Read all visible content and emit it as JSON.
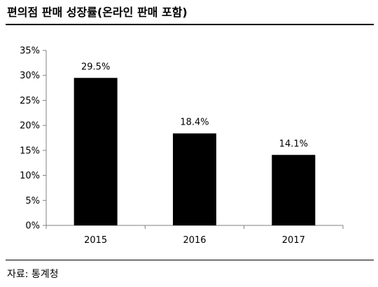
{
  "title": "편의점 판매 성장률(온라인 판매 포함)",
  "source": "자료: 통계청",
  "chart_data": {
    "type": "bar",
    "title": "편의점 판매 성장률(온라인 판매 포함)",
    "categories": [
      "2015",
      "2016",
      "2017"
    ],
    "values": [
      29.5,
      18.4,
      14.1
    ],
    "value_labels": [
      "29.5%",
      "18.4%",
      "14.1%"
    ],
    "xlabel": "",
    "ylabel": "",
    "ylim": [
      0,
      35
    ],
    "yticks": [
      0,
      5,
      10,
      15,
      20,
      25,
      30,
      35
    ],
    "ytick_labels": [
      "0%",
      "5%",
      "10%",
      "15%",
      "20%",
      "25%",
      "30%",
      "35%"
    ],
    "grid": false,
    "legend": "none",
    "bar_color": "#000000"
  }
}
